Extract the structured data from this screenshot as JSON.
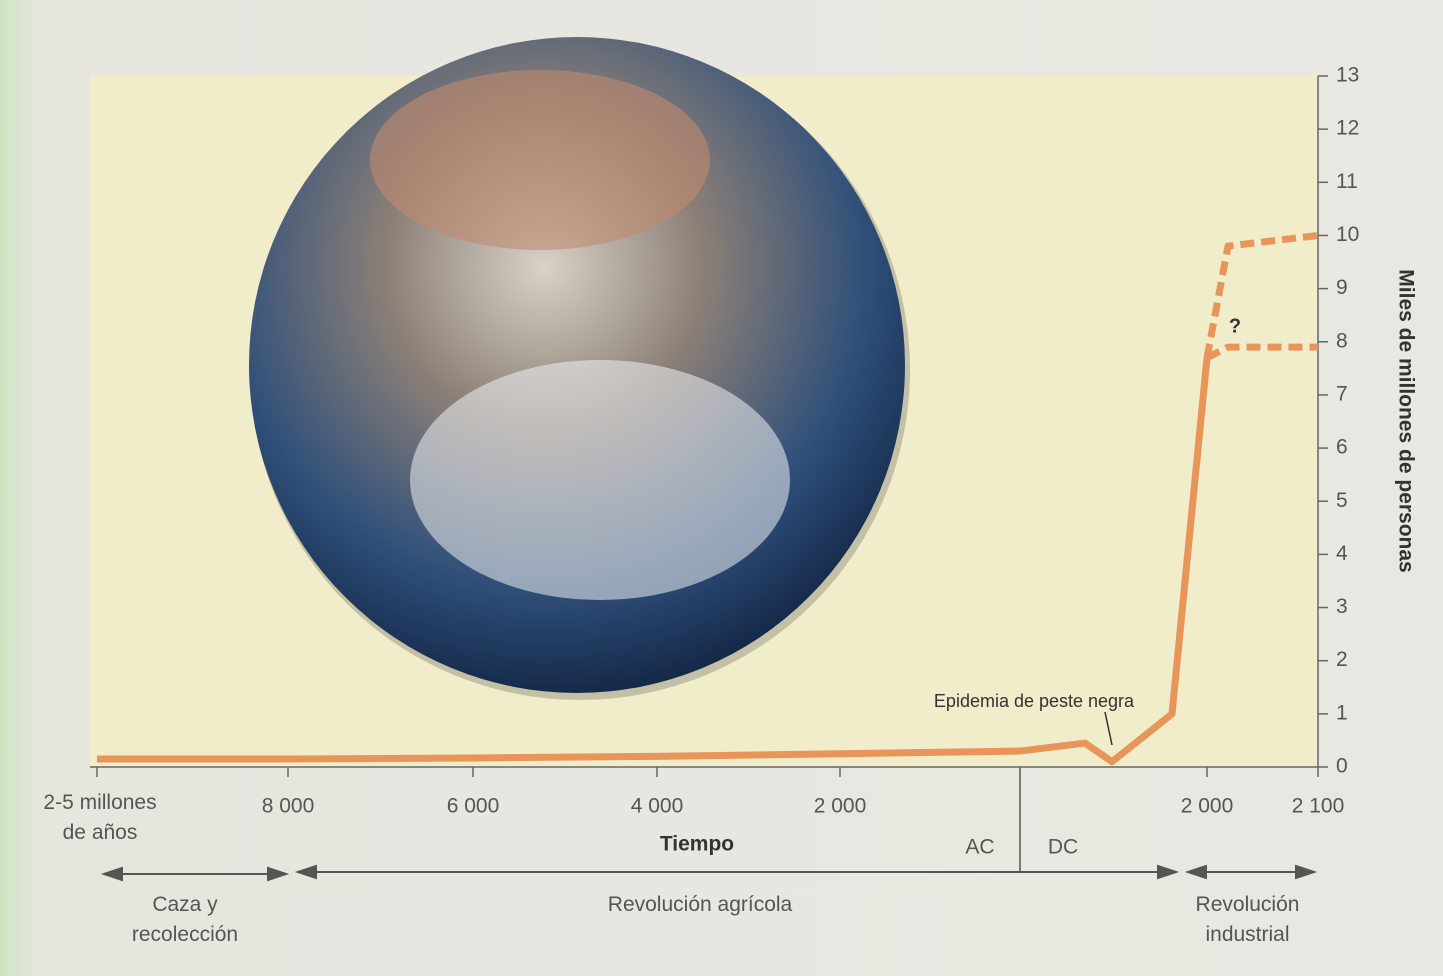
{
  "chart_data": {
    "type": "line",
    "categories": [
      "2-5 millones de años",
      "8 000",
      "6 000",
      "4 000",
      "2 000",
      null,
      null,
      null,
      null,
      "2 000",
      null,
      "2 100"
    ],
    "series": [
      {
        "color": "#e8955a",
        "style": "solid",
        "values": [
          0.15,
          0.15,
          0.17,
          0.2,
          0.25,
          0.3,
          0.45,
          0.1,
          1.0,
          7.7,
          null,
          null
        ]
      },
      {
        "color": "#e8955a",
        "style": "dashed",
        "values": [
          null,
          null,
          null,
          null,
          null,
          null,
          null,
          null,
          null,
          7.7,
          9.8,
          10
        ]
      },
      {
        "color": "#e8955a",
        "style": "dashed",
        "values": [
          null,
          null,
          null,
          null,
          null,
          null,
          null,
          null,
          null,
          7.7,
          7.9,
          7.9
        ]
      }
    ],
    "ylim": [
      0,
      13
    ],
    "yticks": [
      0,
      1,
      2,
      3,
      4,
      5,
      6,
      7,
      8,
      9,
      10,
      11,
      12,
      13
    ],
    "x_label": "Tiempo",
    "y_label": "Miles de millones de personas",
    "annotations": {
      "question": "?",
      "black_death": "Epidemia de peste negra",
      "bc": "AC",
      "ad": "DC"
    },
    "eras": [
      "Caza y recolección",
      "Revolución agrícola",
      "Revolución industrial"
    ]
  }
}
